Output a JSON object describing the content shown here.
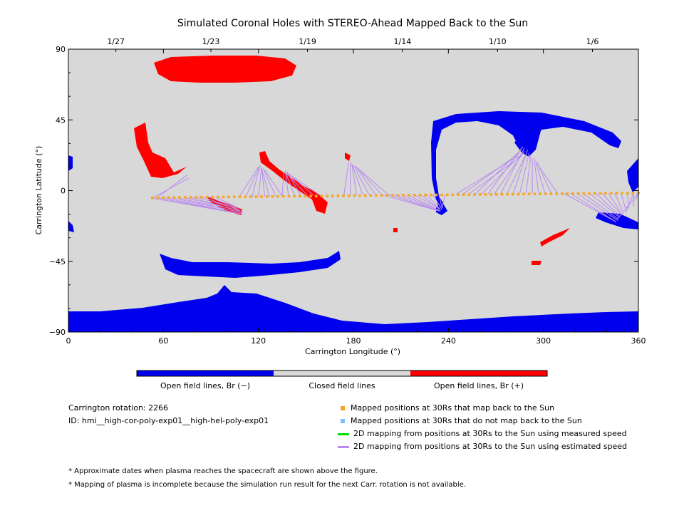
{
  "chart_data": {
    "type": "scatter",
    "title": "Simulated Coronal Holes with STEREO-Ahead Mapped Back to the Sun",
    "xlabel": "Carrington Longitude (°)",
    "ylabel": "Carrington Latitude (°)",
    "xlim": [
      0,
      360
    ],
    "ylim": [
      -90,
      90
    ],
    "x_ticks": [
      "0",
      "60",
      "120",
      "180",
      "240",
      "300",
      "360"
    ],
    "y_ticks": [
      "90",
      "45",
      "0",
      "-45",
      "-90"
    ],
    "top_axis_dates": [
      {
        "label": "1/27",
        "x": 30
      },
      {
        "label": "1/23",
        "x": 90
      },
      {
        "label": "1/19",
        "x": 151
      },
      {
        "label": "1/14",
        "x": 211
      },
      {
        "label": "1/10",
        "x": 271
      },
      {
        "label": "1/6",
        "x": 331
      }
    ],
    "background_color": "#d8d8d8",
    "colors": {
      "open_negative": "#0000ee",
      "closed": "#d8d8d8",
      "open_positive": "#ff0000",
      "mapped_points": "#f5a623",
      "measured_mapping": "#00dd00",
      "estimated_mapping": "#b98cf0"
    },
    "mapped_points": {
      "x_start": 53,
      "x_end": 360,
      "count": 90,
      "y_start": -4.5,
      "y_end": -1.5
    },
    "estimated_mapping_lines": [
      {
        "from": [
          53,
          -4.8
        ],
        "to": [
          110,
          -15
        ]
      },
      {
        "from": [
          57,
          -4.7
        ],
        "to": [
          110,
          -15
        ]
      },
      {
        "from": [
          61,
          -4.6
        ],
        "to": [
          110,
          -15
        ]
      },
      {
        "from": [
          65,
          -4.6
        ],
        "to": [
          110,
          -14
        ]
      },
      {
        "from": [
          69,
          -4.5
        ],
        "to": [
          109,
          -14
        ]
      },
      {
        "from": [
          73,
          -4.4
        ],
        "to": [
          109,
          -13
        ]
      },
      {
        "from": [
          77,
          -4.3
        ],
        "to": [
          108,
          -13
        ]
      },
      {
        "from": [
          81,
          -4.2
        ],
        "to": [
          108,
          -12
        ]
      },
      {
        "from": [
          85,
          -4.1
        ],
        "to": [
          107,
          -12
        ]
      },
      {
        "from": [
          89,
          -4.1
        ],
        "to": [
          106,
          -11
        ]
      },
      {
        "from": [
          93,
          -4.0
        ],
        "to": [
          105,
          -10
        ]
      },
      {
        "from": [
          53,
          -4.8
        ],
        "to": [
          76,
          8
        ]
      },
      {
        "from": [
          56,
          -4.7
        ],
        "to": [
          75,
          10
        ]
      },
      {
        "from": [
          112,
          -3.9
        ],
        "to": [
          121,
          16
        ]
      },
      {
        "from": [
          116,
          -3.8
        ],
        "to": [
          121,
          16
        ]
      },
      {
        "from": [
          120,
          -3.8
        ],
        "to": [
          122,
          15
        ]
      },
      {
        "from": [
          124,
          -3.7
        ],
        "to": [
          122,
          15
        ]
      },
      {
        "from": [
          127,
          -3.6
        ],
        "to": [
          122,
          14
        ]
      },
      {
        "from": [
          131,
          -3.6
        ],
        "to": [
          123,
          14
        ]
      },
      {
        "from": [
          135,
          -3.5
        ],
        "to": [
          124,
          13
        ]
      },
      {
        "from": [
          108,
          -3.9
        ],
        "to": [
          120,
          15
        ]
      },
      {
        "from": [
          135,
          -3.5
        ],
        "to": [
          136,
          12
        ]
      },
      {
        "from": [
          139,
          -3.4
        ],
        "to": [
          137,
          13
        ]
      },
      {
        "from": [
          143,
          -3.3
        ],
        "to": [
          137,
          12
        ]
      },
      {
        "from": [
          147,
          -3.3
        ],
        "to": [
          138,
          12
        ]
      },
      {
        "from": [
          151,
          -3.2
        ],
        "to": [
          138,
          11
        ]
      },
      {
        "from": [
          155,
          -3.1
        ],
        "to": [
          139,
          11
        ]
      },
      {
        "from": [
          159,
          -3.0
        ],
        "to": [
          140,
          10
        ]
      },
      {
        "from": [
          174,
          -3.0
        ],
        "to": [
          177,
          18
        ]
      },
      {
        "from": [
          178,
          -2.9
        ],
        "to": [
          178,
          18
        ]
      },
      {
        "from": [
          182,
          -2.9
        ],
        "to": [
          179,
          17
        ]
      },
      {
        "from": [
          186,
          -2.8
        ],
        "to": [
          179,
          17
        ]
      },
      {
        "from": [
          190,
          -2.8
        ],
        "to": [
          180,
          16
        ]
      },
      {
        "from": [
          194,
          -2.7
        ],
        "to": [
          181,
          16
        ]
      },
      {
        "from": [
          198,
          -2.7
        ],
        "to": [
          182,
          15
        ]
      },
      {
        "from": [
          202,
          -2.6
        ],
        "to": [
          183,
          14
        ]
      },
      {
        "from": [
          198,
          -2.7
        ],
        "to": [
          234,
          -13
        ]
      },
      {
        "from": [
          202,
          -2.6
        ],
        "to": [
          234,
          -13
        ]
      },
      {
        "from": [
          206,
          -2.6
        ],
        "to": [
          234,
          -13
        ]
      },
      {
        "from": [
          210,
          -2.5
        ],
        "to": [
          235,
          -13
        ]
      },
      {
        "from": [
          214,
          -2.5
        ],
        "to": [
          235,
          -13
        ]
      },
      {
        "from": [
          218,
          -2.4
        ],
        "to": [
          235,
          -12
        ]
      },
      {
        "from": [
          222,
          -2.4
        ],
        "to": [
          235,
          -12
        ]
      },
      {
        "from": [
          226,
          -2.4
        ],
        "to": [
          235,
          -12
        ]
      },
      {
        "from": [
          230,
          -2.3
        ],
        "to": [
          236,
          -12
        ]
      },
      {
        "from": [
          234,
          -2.3
        ],
        "to": [
          236,
          -11
        ]
      },
      {
        "from": [
          238,
          -2.3
        ],
        "to": [
          236,
          -11
        ]
      },
      {
        "from": [
          245,
          -2.2
        ],
        "to": [
          284,
          22
        ]
      },
      {
        "from": [
          249,
          -2.2
        ],
        "to": [
          285,
          24
        ]
      },
      {
        "from": [
          253,
          -2.1
        ],
        "to": [
          286,
          22
        ]
      },
      {
        "from": [
          257,
          -2.1
        ],
        "to": [
          286,
          26
        ]
      },
      {
        "from": [
          261,
          -2.1
        ],
        "to": [
          287,
          24
        ]
      },
      {
        "from": [
          265,
          -2.0
        ],
        "to": [
          287,
          28
        ]
      },
      {
        "from": [
          269,
          -2.0
        ],
        "to": [
          288,
          25
        ]
      },
      {
        "from": [
          273,
          -2.0
        ],
        "to": [
          288,
          27
        ]
      },
      {
        "from": [
          277,
          -1.9
        ],
        "to": [
          289,
          23
        ]
      },
      {
        "from": [
          281,
          -1.9
        ],
        "to": [
          290,
          26
        ]
      },
      {
        "from": [
          285,
          -1.9
        ],
        "to": [
          291,
          24
        ]
      },
      {
        "from": [
          289,
          -1.9
        ],
        "to": [
          292,
          22
        ]
      },
      {
        "from": [
          293,
          -1.8
        ],
        "to": [
          293,
          20
        ]
      },
      {
        "from": [
          297,
          -1.8
        ],
        "to": [
          294,
          21
        ]
      },
      {
        "from": [
          301,
          -1.8
        ],
        "to": [
          295,
          19
        ]
      },
      {
        "from": [
          305,
          -1.8
        ],
        "to": [
          296,
          18
        ]
      },
      {
        "from": [
          309,
          -1.7
        ],
        "to": [
          296,
          17
        ]
      },
      {
        "from": [
          313,
          -1.7
        ],
        "to": [
          346,
          -20
        ]
      },
      {
        "from": [
          317,
          -1.7
        ],
        "to": [
          346,
          -20
        ]
      },
      {
        "from": [
          321,
          -1.7
        ],
        "to": [
          347,
          -19
        ]
      },
      {
        "from": [
          325,
          -1.7
        ],
        "to": [
          347,
          -18
        ]
      },
      {
        "from": [
          329,
          -1.6
        ],
        "to": [
          348,
          -17
        ]
      },
      {
        "from": [
          333,
          -1.6
        ],
        "to": [
          348,
          -16
        ]
      },
      {
        "from": [
          337,
          -1.6
        ],
        "to": [
          349,
          -15
        ]
      },
      {
        "from": [
          341,
          -1.6
        ],
        "to": [
          349,
          -14
        ]
      },
      {
        "from": [
          345,
          -1.6
        ],
        "to": [
          350,
          -13
        ]
      },
      {
        "from": [
          349,
          -1.5
        ],
        "to": [
          352,
          -12
        ]
      },
      {
        "from": [
          353,
          -1.5
        ],
        "to": [
          354,
          -11
        ]
      },
      {
        "from": [
          357,
          -1.5
        ],
        "to": [
          357,
          -10
        ]
      },
      {
        "from": [
          360,
          -1.5
        ],
        "to": [
          358,
          -6
        ]
      },
      {
        "from": [
          357,
          -1.5
        ],
        "to": [
          352,
          -14
        ]
      },
      {
        "from": [
          360,
          -1.5
        ],
        "to": [
          347,
          -18
        ]
      }
    ],
    "colorbar": {
      "labels": [
        "Open field lines, Br (−)",
        "Closed field lines",
        "Open field lines, Br (+)"
      ]
    }
  },
  "info": {
    "rotation": "Carrington rotation: 2266",
    "id": "ID: hmi__high-cor-poly-exp01__high-hel-poly-exp01"
  },
  "legend": [
    {
      "label": "Mapped positions at 30Rs that map back to the Sun",
      "kind": "square",
      "color": "#f5a623"
    },
    {
      "label": "Mapped positions at 30Rs that do not map back to the Sun",
      "kind": "square",
      "color": "#7fbfff"
    },
    {
      "label": "2D mapping from positions at 30Rs to the Sun using measured speed",
      "kind": "line",
      "color": "#00dd00"
    },
    {
      "label": "2D mapping from positions at 30Rs to the Sun using estimated speed",
      "kind": "line",
      "color": "#b98cf0"
    }
  ],
  "notes": [
    "* Approximate dates when plasma reaches the spacecraft are shown above the figure.",
    "* Mapping of plasma is incomplete because the simulation run result for the next Carr. rotation is not available."
  ]
}
